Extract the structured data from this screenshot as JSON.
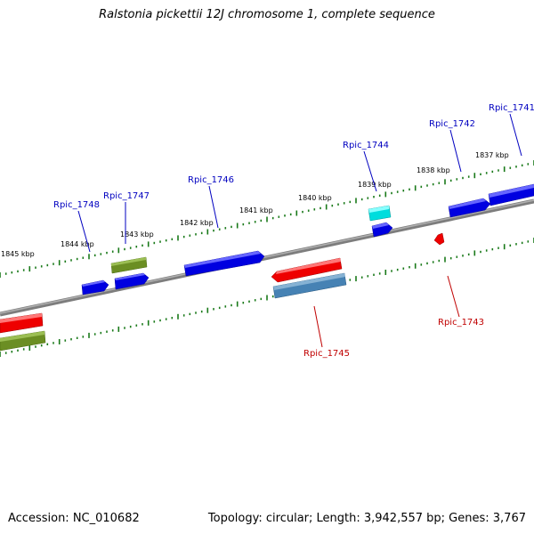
{
  "title": "Ralstonia pickettii 12J chromosome 1, complete sequence",
  "footer": {
    "accession": "Accession: NC_010682",
    "summary": "Topology: circular; Length: 3,942,557 bp; Genes: 3,767"
  },
  "colors": {
    "backbone": "#8a8a8a",
    "tick": "#1a7a1a",
    "forward_label": "#0000c0",
    "reverse_label": "#c00000",
    "blue_gene": "#0000e0",
    "red_gene": "#ee0000",
    "olive_gene": "#6b8e23",
    "cyan_gene": "#00dddd",
    "steel_gene": "#4682b4"
  },
  "kbp_labels": [
    "1845 kbp",
    "1844 kbp",
    "1843 kbp",
    "1842 kbp",
    "1841 kbp",
    "1840 kbp",
    "1839 kbp",
    "1838 kbp",
    "1837 kbp"
  ],
  "gene_labels": {
    "forward": [
      "Rpic_1748",
      "Rpic_1747",
      "Rpic_1746",
      "Rpic_1744",
      "Rpic_1742",
      "Rpic_1741"
    ],
    "reverse": [
      "Rpic_1745",
      "Rpic_1743"
    ]
  }
}
